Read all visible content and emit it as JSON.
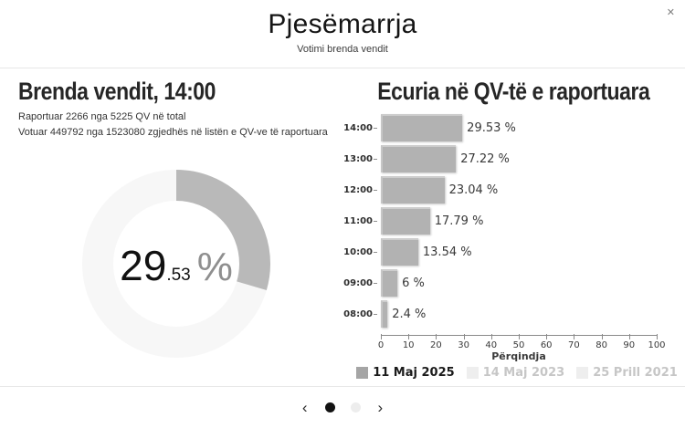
{
  "header": {
    "title": "Pjesëmarrja",
    "subtitle": "Votimi brenda vendit",
    "close_icon": "✕"
  },
  "left_panel": {
    "heading": "Brenda vendit, 14:00",
    "stats_line1": "Raportuar 2266 nga 5225 QV në total",
    "stats_line2": "Votuar 449792 nga 1523080 zgjedhës në listën e QV-ve të raportuara"
  },
  "right_panel": {
    "heading": "Ecuria në QV-të e raportuara"
  },
  "chart_data": [
    {
      "type": "donut",
      "title": "Brenda vendit, 14:00",
      "value": 29.53,
      "value_display": {
        "int": "29",
        "dec": ".53",
        "unit": "%"
      },
      "fill_color": "#b9b9b9",
      "track_color": "#f7f7f7"
    },
    {
      "type": "bar",
      "orientation": "horizontal",
      "title": "Ecuria në QV-të e raportuara",
      "categories": [
        "14:00",
        "13:00",
        "12:00",
        "11:00",
        "10:00",
        "09:00",
        "08:00"
      ],
      "values": [
        29.53,
        27.22,
        23.04,
        17.79,
        13.54,
        6,
        2.4
      ],
      "value_labels": [
        "29.53 %",
        "27.22 %",
        "23.04 %",
        "17.79 %",
        "13.54 %",
        "6 %",
        "2.4 %"
      ],
      "xlabel": "Përqindja",
      "xlim": [
        0,
        100
      ],
      "x_ticks": [
        0,
        10,
        20,
        30,
        40,
        50,
        60,
        70,
        80,
        90,
        100
      ],
      "bar_color": "#b2b2b2",
      "grid": false,
      "legend_position": "bottom",
      "legend": [
        {
          "label": "11 Maj 2025",
          "active": true,
          "swatch_color": "#a5a5a5"
        },
        {
          "label": "14 Maj 2023",
          "active": false,
          "swatch_color": "#eeeeee"
        },
        {
          "label": "25 Prill 2021",
          "active": false,
          "swatch_color": "#eeeeee"
        }
      ]
    }
  ],
  "footer": {
    "prev_icon": "‹",
    "next_icon": "›",
    "dots": [
      {
        "active": true
      },
      {
        "active": false
      }
    ]
  }
}
